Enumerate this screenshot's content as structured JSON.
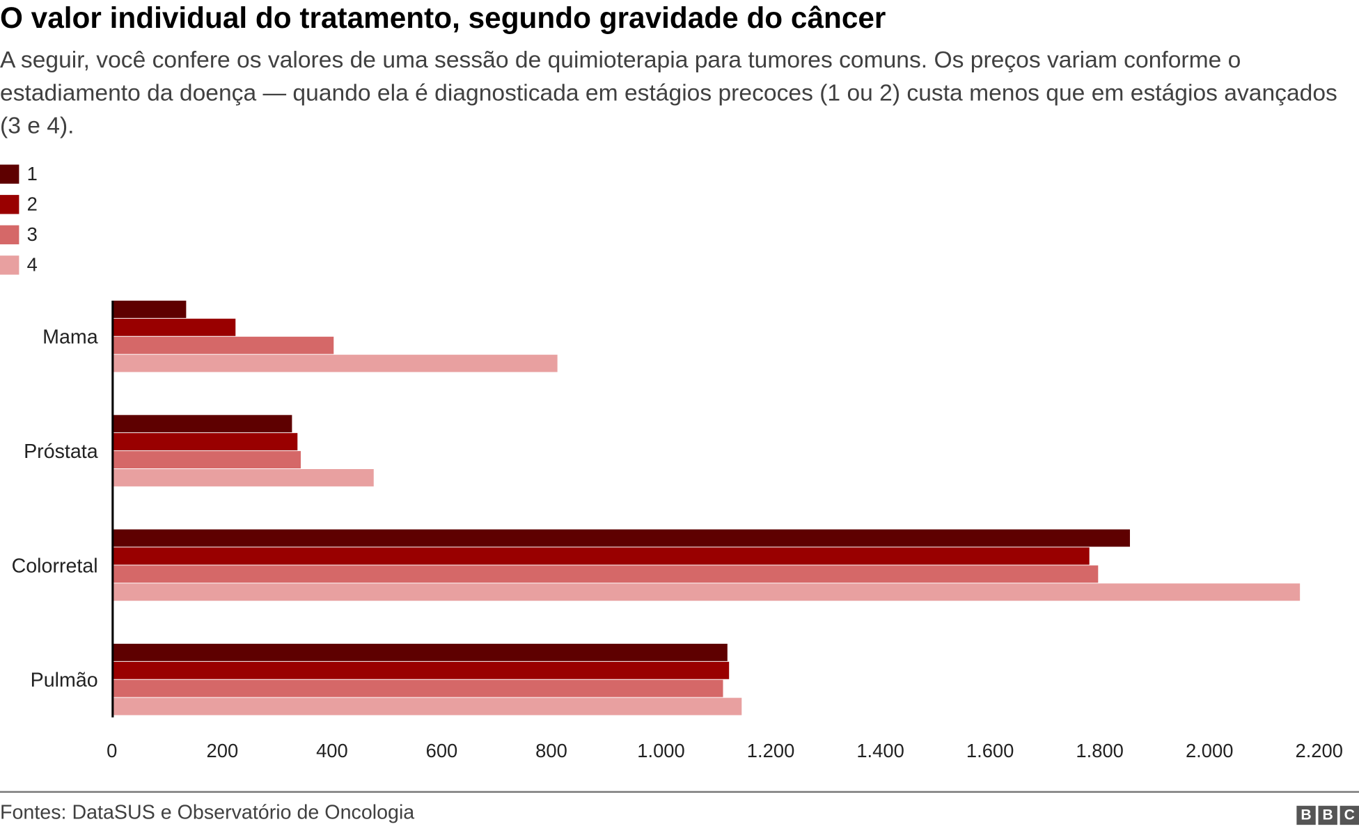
{
  "chart_data": {
    "type": "bar",
    "orientation": "horizontal",
    "title": "O valor individual do tratamento, segundo gravidade do câncer",
    "subtitle": "A seguir, você confere os valores de uma sessão de quimioterapia para tumores comuns. Os preços variam conforme o estadiamento da doença — quando ela é diagnosticada em estágios precoces (1 ou 2) custa menos que em estágios avançados (3 e 4).",
    "categories": [
      "Mama",
      "Próstata",
      "Colorretal",
      "Pulmão"
    ],
    "series": [
      {
        "name": "1",
        "color": "#5e0000",
        "values": [
          134,
          327,
          1855,
          1121
        ]
      },
      {
        "name": "2",
        "color": "#990000",
        "values": [
          224,
          337,
          1781,
          1124
        ]
      },
      {
        "name": "3",
        "color": "#d56868",
        "values": [
          403,
          343,
          1797,
          1113
        ]
      },
      {
        "name": "4",
        "color": "#e8a0a0",
        "values": [
          811,
          476,
          2165,
          1147
        ]
      }
    ],
    "xlim": [
      0,
      2200
    ],
    "xticks": [
      "0",
      "200",
      "400",
      "600",
      "800",
      "1.000",
      "1.200",
      "1.400",
      "1.600",
      "1.800",
      "2.000",
      "2.200"
    ],
    "xtick_values": [
      0,
      200,
      400,
      600,
      800,
      1000,
      1200,
      1400,
      1600,
      1800,
      2000,
      2200
    ],
    "grid": false,
    "legend_position": "top-left"
  },
  "footer": {
    "source": "Fontes: DataSUS e Observatório de Oncologia",
    "logo": [
      "B",
      "B",
      "C"
    ]
  }
}
